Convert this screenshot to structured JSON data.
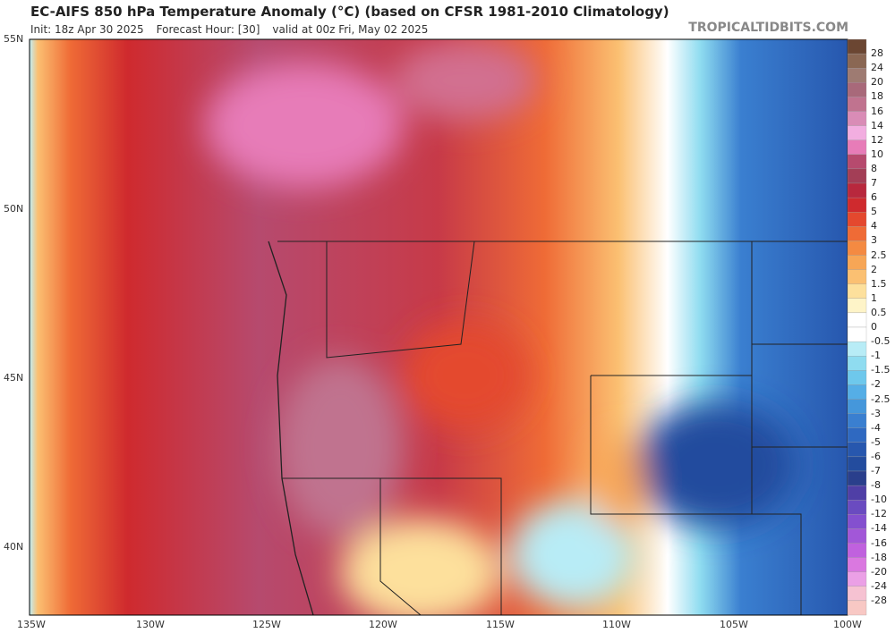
{
  "header": {
    "title": "EC-AIFS 850 hPa Temperature Anomaly (°C) (based on CFSR 1981-2010 Climatology)",
    "init": "Init: 18z Apr 30 2025",
    "forecast_hour": "Forecast Hour: [30]",
    "valid": "valid at 00z Fri, May 02 2025",
    "site": "TROPICALTIDBITS.COM"
  },
  "map": {
    "lat_labels": [
      "55N",
      "50N",
      "45N",
      "40N"
    ],
    "lon_labels": [
      "135W",
      "130W",
      "125W",
      "120W",
      "115W",
      "110W",
      "105W",
      "100W"
    ]
  },
  "colorbar": {
    "levels": [
      28,
      24,
      20,
      18,
      16,
      14,
      12,
      10,
      8,
      7,
      6,
      5,
      4,
      3,
      2.5,
      2,
      1.5,
      1,
      0.5,
      0,
      -0.5,
      -1,
      -1.5,
      -2,
      -2.5,
      -3,
      -4,
      -5,
      -6,
      -7,
      -8,
      -10,
      -12,
      -14,
      -16,
      -18,
      -20,
      -24,
      -28
    ],
    "colors": [
      "#6b4632",
      "#8a6753",
      "#9e7b72",
      "#a8697a",
      "#c0738f",
      "#d98cb6",
      "#f2aee0",
      "#e77cb8",
      "#b64a6e",
      "#a33e56",
      "#b8283d",
      "#cf2a2e",
      "#e4482e",
      "#ef6b36",
      "#f48a42",
      "#f7a656",
      "#fbc072",
      "#fde09c",
      "#fef4c8",
      "#ffffff",
      "#ffffff",
      "#b8ecf6",
      "#8fdcf0",
      "#6ec8ec",
      "#55aee6",
      "#4597db",
      "#3a7fd0",
      "#2f69c1",
      "#2757ae",
      "#234c9e",
      "#2a3f8c",
      "#4f3fa6",
      "#6a4bc0",
      "#8450cf",
      "#a257d8",
      "#c061de",
      "#da78e0",
      "#eba0e6",
      "#f6c2d2",
      "#f8c8c4"
    ]
  }
}
